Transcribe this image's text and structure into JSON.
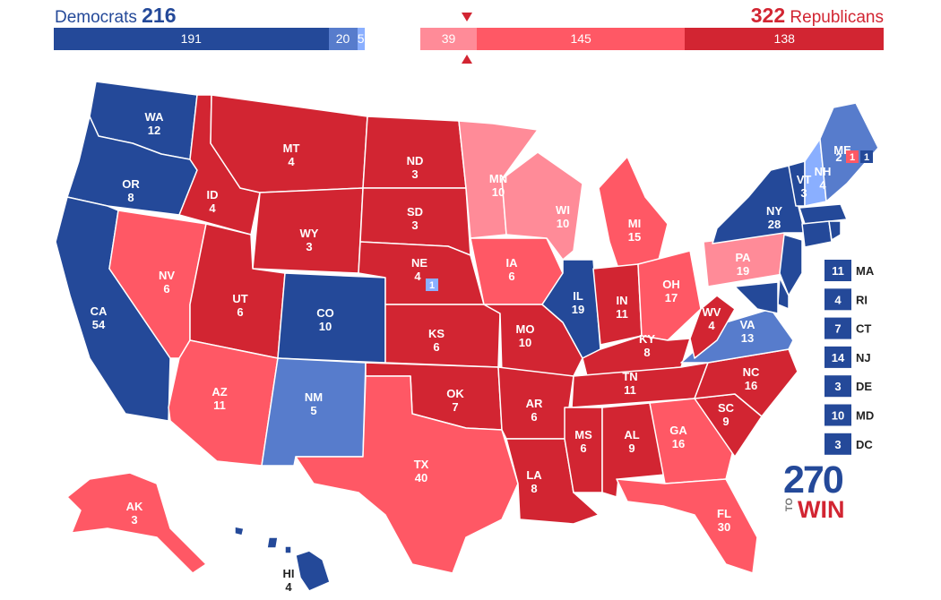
{
  "header": {
    "dem_label": "Democrats",
    "dem_total": "216",
    "rep_total": "322",
    "rep_label": "Republicans"
  },
  "colors": {
    "safe_d": "#244999",
    "likely_d": "#577ccc",
    "lean_d": "#8aafff",
    "tossup": "#bfb08f",
    "lean_r": "#ff8b98",
    "likely_r": "#ff5865",
    "safe_r": "#d22532"
  },
  "bar": [
    {
      "label": "191",
      "value": 191,
      "rating": "safe_d"
    },
    {
      "label": "20",
      "value": 20,
      "rating": "likely_d"
    },
    {
      "label": "5",
      "value": 5,
      "rating": "lean_d"
    },
    {
      "label": "",
      "value": 39,
      "rating": "gap"
    },
    {
      "label": "39",
      "value": 39,
      "rating": "lean_r"
    },
    {
      "label": "145",
      "value": 145,
      "rating": "likely_r"
    },
    {
      "label": "138",
      "value": 138,
      "rating": "safe_r"
    }
  ],
  "states": {
    "WA": {
      "abbr": "WA",
      "ev": "12",
      "rating": "safe_d"
    },
    "OR": {
      "abbr": "OR",
      "ev": "8",
      "rating": "safe_d"
    },
    "CA": {
      "abbr": "CA",
      "ev": "54",
      "rating": "safe_d"
    },
    "NV": {
      "abbr": "NV",
      "ev": "6",
      "rating": "likely_r"
    },
    "ID": {
      "abbr": "ID",
      "ev": "4",
      "rating": "safe_r"
    },
    "MT": {
      "abbr": "MT",
      "ev": "4",
      "rating": "safe_r"
    },
    "WY": {
      "abbr": "WY",
      "ev": "3",
      "rating": "safe_r"
    },
    "UT": {
      "abbr": "UT",
      "ev": "6",
      "rating": "safe_r"
    },
    "AZ": {
      "abbr": "AZ",
      "ev": "11",
      "rating": "likely_r"
    },
    "CO": {
      "abbr": "CO",
      "ev": "10",
      "rating": "safe_d"
    },
    "NM": {
      "abbr": "NM",
      "ev": "5",
      "rating": "likely_d"
    },
    "ND": {
      "abbr": "ND",
      "ev": "3",
      "rating": "safe_r"
    },
    "SD": {
      "abbr": "SD",
      "ev": "3",
      "rating": "safe_r"
    },
    "NE": {
      "abbr": "NE",
      "ev": "4",
      "rating": "safe_r"
    },
    "NE2": {
      "ev": "1",
      "rating": "lean_d"
    },
    "KS": {
      "abbr": "KS",
      "ev": "6",
      "rating": "safe_r"
    },
    "OK": {
      "abbr": "OK",
      "ev": "7",
      "rating": "safe_r"
    },
    "TX": {
      "abbr": "TX",
      "ev": "40",
      "rating": "likely_r"
    },
    "MN": {
      "abbr": "MN",
      "ev": "10",
      "rating": "lean_r"
    },
    "IA": {
      "abbr": "IA",
      "ev": "6",
      "rating": "likely_r"
    },
    "MO": {
      "abbr": "MO",
      "ev": "10",
      "rating": "safe_r"
    },
    "AR": {
      "abbr": "AR",
      "ev": "6",
      "rating": "safe_r"
    },
    "LA": {
      "abbr": "LA",
      "ev": "8",
      "rating": "safe_r"
    },
    "WI": {
      "abbr": "WI",
      "ev": "10",
      "rating": "lean_r"
    },
    "IL": {
      "abbr": "IL",
      "ev": "19",
      "rating": "safe_d"
    },
    "MI": {
      "abbr": "MI",
      "ev": "15",
      "rating": "likely_r"
    },
    "IN": {
      "abbr": "IN",
      "ev": "11",
      "rating": "safe_r"
    },
    "OH": {
      "abbr": "OH",
      "ev": "17",
      "rating": "likely_r"
    },
    "KY": {
      "abbr": "KY",
      "ev": "8",
      "rating": "safe_r"
    },
    "TN": {
      "abbr": "TN",
      "ev": "11",
      "rating": "safe_r"
    },
    "MS": {
      "abbr": "MS",
      "ev": "6",
      "rating": "safe_r"
    },
    "AL": {
      "abbr": "AL",
      "ev": "9",
      "rating": "safe_r"
    },
    "GA": {
      "abbr": "GA",
      "ev": "16",
      "rating": "likely_r"
    },
    "FL": {
      "abbr": "FL",
      "ev": "30",
      "rating": "likely_r"
    },
    "SC": {
      "abbr": "SC",
      "ev": "9",
      "rating": "safe_r"
    },
    "NC": {
      "abbr": "NC",
      "ev": "16",
      "rating": "safe_r"
    },
    "VA": {
      "abbr": "VA",
      "ev": "13",
      "rating": "likely_d"
    },
    "WV": {
      "abbr": "WV",
      "ev": "4",
      "rating": "safe_r"
    },
    "PA": {
      "abbr": "PA",
      "ev": "19",
      "rating": "lean_r"
    },
    "NY": {
      "abbr": "NY",
      "ev": "28",
      "rating": "safe_d"
    },
    "VT": {
      "abbr": "VT",
      "ev": "3",
      "rating": "safe_d"
    },
    "NH": {
      "abbr": "NH",
      "ev": "4",
      "rating": "lean_d"
    },
    "ME": {
      "abbr": "ME",
      "ev": "2",
      "rating": "likely_d"
    },
    "ME2": {
      "ev": "1",
      "rating": "likely_r"
    },
    "ME1": {
      "ev": "1",
      "rating": "safe_d"
    },
    "AK": {
      "abbr": "AK",
      "ev": "3",
      "rating": "likely_r"
    },
    "HI": {
      "abbr": "HI",
      "ev": "4",
      "rating": "safe_d"
    },
    "MA": {
      "abbr": "MA",
      "ev": "11",
      "rating": "safe_d"
    },
    "RI": {
      "abbr": "RI",
      "ev": "4",
      "rating": "safe_d"
    },
    "CT": {
      "abbr": "CT",
      "ev": "7",
      "rating": "safe_d"
    },
    "NJ": {
      "abbr": "NJ",
      "ev": "14",
      "rating": "safe_d"
    },
    "DE": {
      "abbr": "DE",
      "ev": "3",
      "rating": "safe_d"
    },
    "MD": {
      "abbr": "MD",
      "ev": "10",
      "rating": "safe_d"
    },
    "DC": {
      "abbr": "DC",
      "ev": "3",
      "rating": "safe_d"
    }
  },
  "small_states": [
    "MA",
    "RI",
    "CT",
    "NJ",
    "DE",
    "MD",
    "DC"
  ],
  "logo": {
    "number": "270",
    "to": "TO",
    "win": "WIN"
  }
}
